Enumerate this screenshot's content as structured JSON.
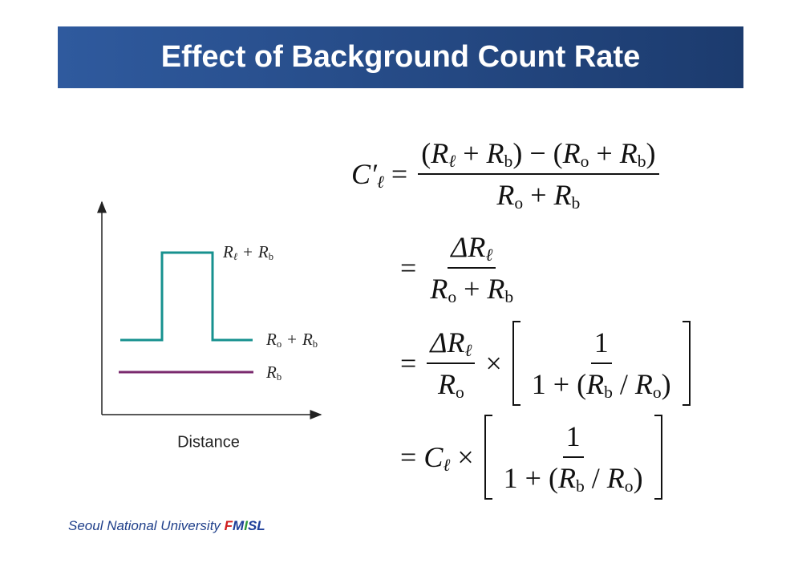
{
  "header": {
    "title": "Effect of Background Count Rate"
  },
  "diagram": {
    "x_label": "Distance",
    "labels": [
      [
        {
          "t": "R",
          "s": "ℓ"
        },
        {
          "t": "+"
        },
        {
          "t": "R",
          "s": "b"
        }
      ],
      [
        {
          "t": "R",
          "s": "o"
        },
        {
          "t": "+"
        },
        {
          "t": "R",
          "s": "b"
        }
      ],
      [
        {
          "t": "R",
          "s": "b"
        }
      ]
    ]
  },
  "equations": [
    [
      {
        "t": "C′",
        "s": "ℓ"
      },
      {
        "t": "="
      },
      {
        "frac": {
          "num": [
            {
              "t": "("
            },
            {
              "t": "R",
              "s": "ℓ"
            },
            {
              "t": "+"
            },
            {
              "t": "R",
              "s": "b"
            },
            {
              "t": ")"
            },
            {
              "t": "−"
            },
            {
              "t": "("
            },
            {
              "t": "R",
              "s": "o"
            },
            {
              "t": "+"
            },
            {
              "t": "R",
              "s": "b"
            },
            {
              "t": ")"
            }
          ],
          "den": [
            {
              "t": "R",
              "s": "o"
            },
            {
              "t": "+"
            },
            {
              "t": "R",
              "s": "b"
            }
          ]
        }
      }
    ],
    [
      {
        "t": "="
      },
      {
        "frac": {
          "num": [
            {
              "t": "ΔR",
              "s": "ℓ"
            }
          ],
          "den": [
            {
              "t": "R",
              "s": "o"
            },
            {
              "t": "+"
            },
            {
              "t": "R",
              "s": "b"
            }
          ]
        }
      }
    ],
    [
      {
        "t": "="
      },
      {
        "frac": {
          "num": [
            {
              "t": "ΔR",
              "s": "ℓ"
            }
          ],
          "den": [
            {
              "t": "R",
              "s": "o"
            }
          ]
        }
      },
      {
        "t": "×"
      },
      {
        "bracket": [
          {
            "frac": {
              "num": [
                {
                  "t": "1"
                }
              ],
              "den": [
                {
                  "t": "1"
                },
                {
                  "t": "+"
                },
                {
                  "t": "("
                },
                {
                  "t": "R",
                  "s": "b"
                },
                {
                  "t": "/"
                },
                {
                  "t": "R",
                  "s": "o"
                },
                {
                  "t": ")"
                }
              ]
            }
          }
        ]
      }
    ],
    [
      {
        "t": "="
      },
      {
        "t": "C",
        "s": "ℓ"
      },
      {
        "t": "×"
      },
      {
        "bracket": [
          {
            "frac": {
              "num": [
                {
                  "t": "1"
                }
              ],
              "den": [
                {
                  "t": "1"
                },
                {
                  "t": "+"
                },
                {
                  "t": "("
                },
                {
                  "t": "R",
                  "s": "b"
                },
                {
                  "t": "/"
                },
                {
                  "t": "R",
                  "s": "o"
                },
                {
                  "t": ")"
                }
              ]
            }
          }
        ]
      }
    ]
  ],
  "footer": {
    "institution": "Seoul National University",
    "lab": [
      {
        "text": "F",
        "color": "#d01f1f"
      },
      {
        "text": "M",
        "color": "#1f3f9a"
      },
      {
        "text": "I",
        "color": "#2e9a3a"
      },
      {
        "text": "S",
        "color": "#1f3f9a"
      },
      {
        "text": "L",
        "color": "#1f3f9a"
      }
    ]
  }
}
